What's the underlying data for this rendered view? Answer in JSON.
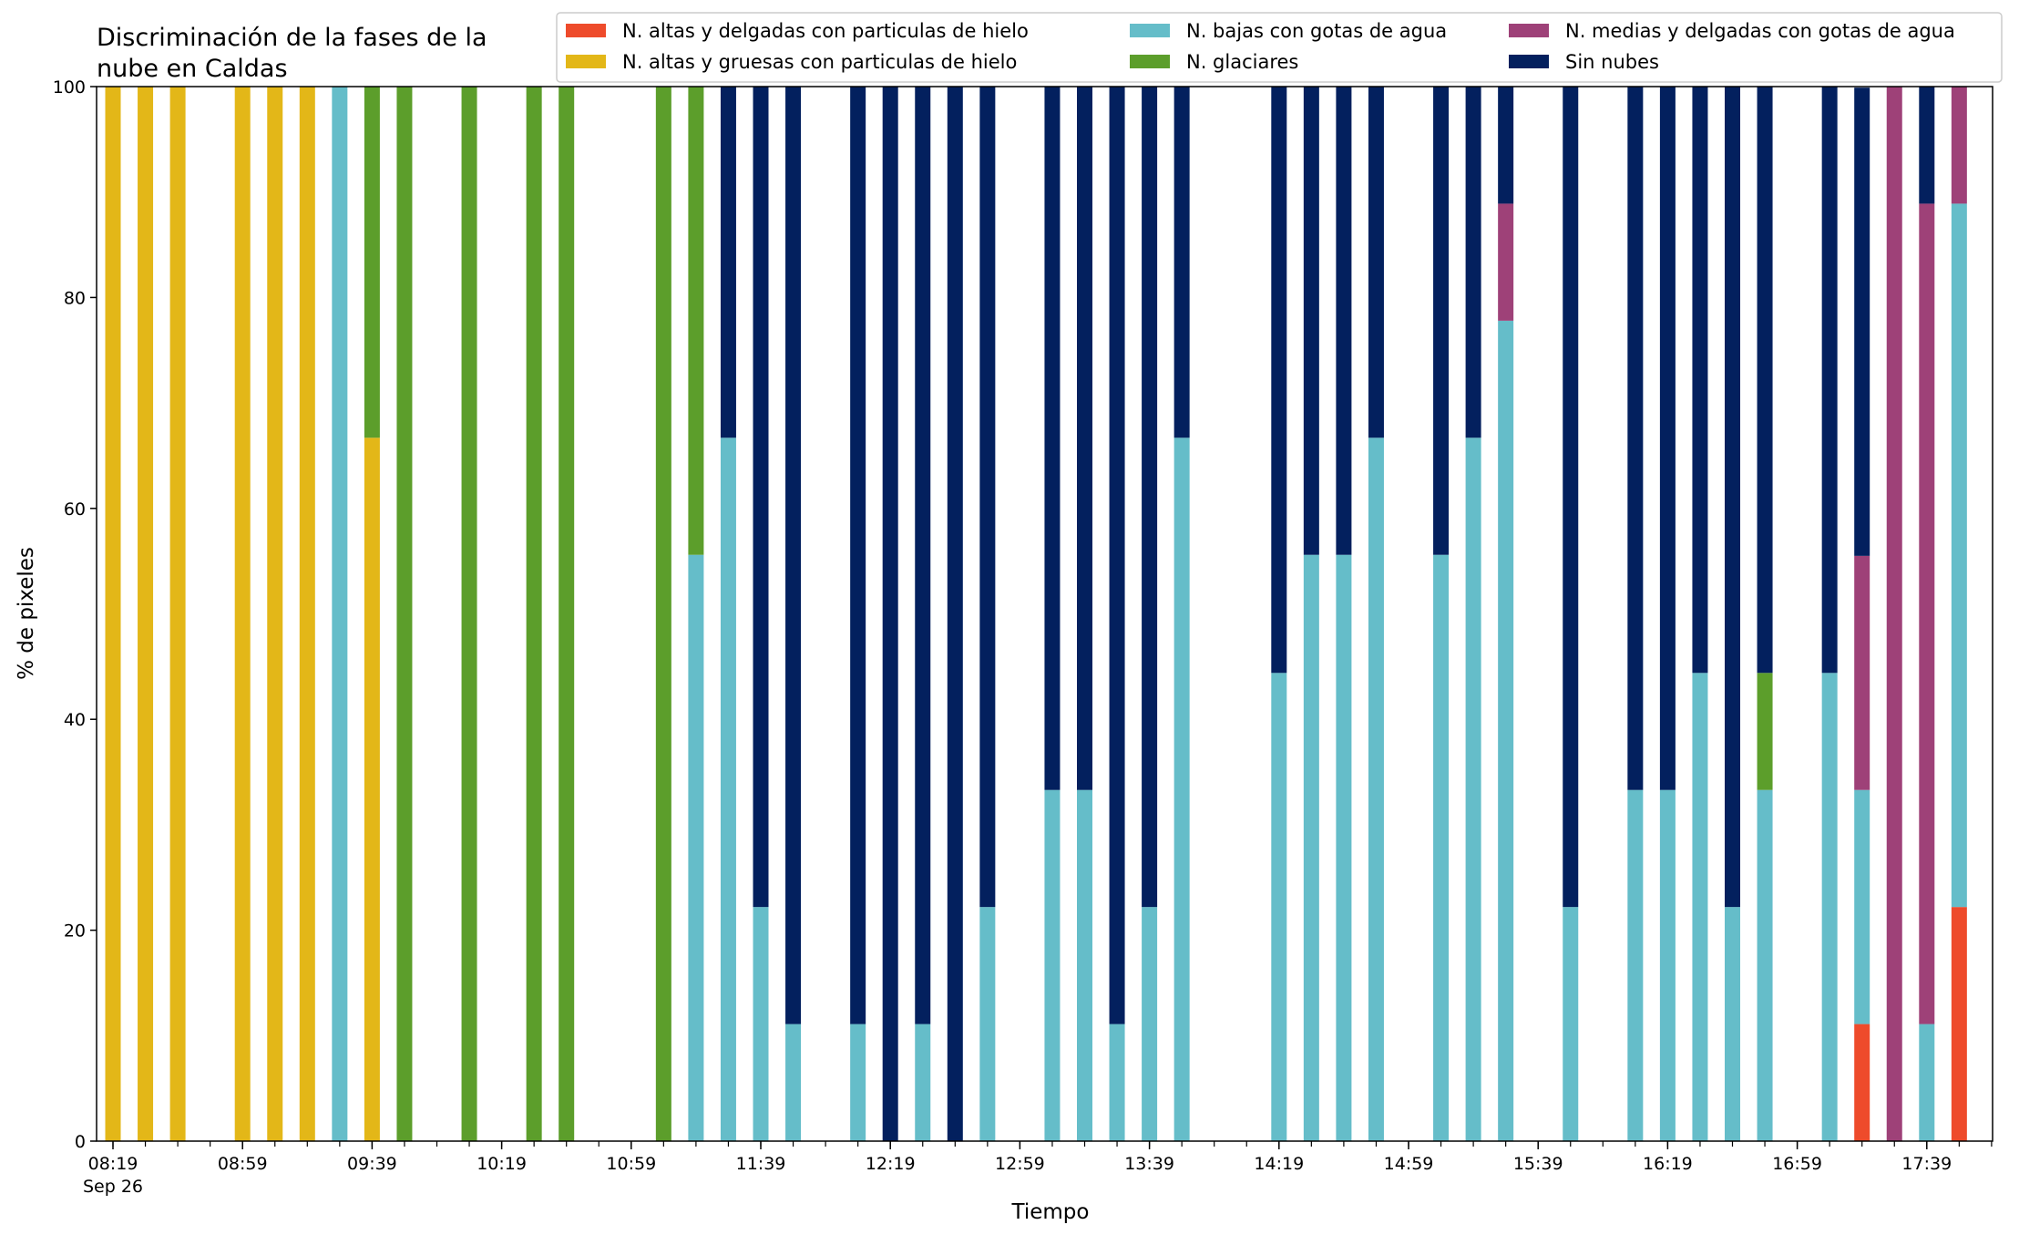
{
  "chart_data": {
    "type": "bar",
    "stacked": true,
    "title_lines": [
      "Discriminación de la fases de la",
      "nube en Caldas"
    ],
    "xlabel": "Tiempo",
    "ylabel": "% de pixeles",
    "ylim": [
      0,
      100
    ],
    "yticks": [
      0,
      20,
      40,
      60,
      80,
      100
    ],
    "x_start": "08:19",
    "slot_minutes": 10,
    "slot_count": 59,
    "xticks": [
      {
        "slot": 0,
        "label": "08:19",
        "sublabel": "Sep 26"
      },
      {
        "slot": 4,
        "label": "08:59"
      },
      {
        "slot": 8,
        "label": "09:39"
      },
      {
        "slot": 12,
        "label": "10:19"
      },
      {
        "slot": 16,
        "label": "10:59"
      },
      {
        "slot": 20,
        "label": "11:39"
      },
      {
        "slot": 24,
        "label": "12:19"
      },
      {
        "slot": 28,
        "label": "12:59"
      },
      {
        "slot": 32,
        "label": "13:39"
      },
      {
        "slot": 36,
        "label": "14:19"
      },
      {
        "slot": 40,
        "label": "14:59"
      },
      {
        "slot": 44,
        "label": "15:39"
      },
      {
        "slot": 48,
        "label": "16:19"
      },
      {
        "slot": 52,
        "label": "16:59"
      },
      {
        "slot": 56,
        "label": "17:39"
      }
    ],
    "legend_placement": "top-right",
    "series": [
      {
        "name": "N. altas y delgadas con particulas de hielo",
        "color": "#ee4b2b"
      },
      {
        "name": "N. altas y gruesas con particulas de hielo",
        "color": "#e3b718"
      },
      {
        "name": "N. bajas con gotas de agua",
        "color": "#65bdc9"
      },
      {
        "name": "N. glaciares",
        "color": "#5c9e2b"
      },
      {
        "name": "N. medias y delgadas con gotas de agua",
        "color": "#9e4178"
      },
      {
        "name": "Sin nubes",
        "color": "#03205e"
      }
    ],
    "bars": [
      {
        "time": "08:19",
        "values": [
          0,
          100,
          0,
          0,
          0,
          0
        ]
      },
      {
        "time": "08:29",
        "values": [
          0,
          100,
          0,
          0,
          0,
          0
        ]
      },
      {
        "time": "08:39",
        "values": [
          0,
          100,
          0,
          0,
          0,
          0
        ]
      },
      {
        "time": "08:59",
        "values": [
          0,
          100,
          0,
          0,
          0,
          0
        ]
      },
      {
        "time": "09:09",
        "values": [
          0,
          100,
          0,
          0,
          0,
          0
        ]
      },
      {
        "time": "09:19",
        "values": [
          0,
          100,
          0,
          0,
          0,
          0
        ]
      },
      {
        "time": "09:29",
        "values": [
          0,
          0,
          100,
          0,
          0,
          0
        ]
      },
      {
        "time": "09:39",
        "values": [
          0,
          66.7,
          0,
          33.3,
          0,
          0
        ]
      },
      {
        "time": "09:49",
        "values": [
          0,
          0,
          0,
          100,
          0,
          0
        ]
      },
      {
        "time": "10:09",
        "values": [
          0,
          0,
          0,
          100,
          0,
          0
        ]
      },
      {
        "time": "10:29",
        "values": [
          0,
          0,
          0,
          100,
          0,
          0
        ]
      },
      {
        "time": "10:39",
        "values": [
          0,
          0,
          0,
          100,
          0,
          0
        ]
      },
      {
        "time": "11:09",
        "values": [
          0,
          0,
          0,
          100,
          0,
          0
        ]
      },
      {
        "time": "11:19",
        "values": [
          0,
          0,
          55.6,
          44.4,
          0,
          0
        ]
      },
      {
        "time": "11:29",
        "values": [
          0,
          0,
          66.7,
          0,
          0,
          33.3
        ]
      },
      {
        "time": "11:39",
        "values": [
          0,
          0,
          22.2,
          0,
          0,
          77.8
        ]
      },
      {
        "time": "11:49",
        "values": [
          0,
          0,
          11.1,
          0,
          0,
          88.9
        ]
      },
      {
        "time": "12:09",
        "values": [
          0,
          0,
          11.1,
          0,
          0,
          88.9
        ]
      },
      {
        "time": "12:19",
        "values": [
          0,
          0,
          0,
          0,
          0,
          100
        ]
      },
      {
        "time": "12:29",
        "values": [
          0,
          0,
          11.1,
          0,
          0,
          88.9
        ]
      },
      {
        "time": "12:39",
        "values": [
          0,
          0,
          0,
          0,
          0,
          100
        ]
      },
      {
        "time": "12:49",
        "values": [
          0,
          0,
          22.2,
          0,
          0,
          77.8
        ]
      },
      {
        "time": "13:09",
        "values": [
          0,
          0,
          33.3,
          0,
          0,
          66.7
        ]
      },
      {
        "time": "13:19",
        "values": [
          0,
          0,
          33.3,
          0,
          0,
          66.7
        ]
      },
      {
        "time": "13:29",
        "values": [
          0,
          0,
          11.1,
          0,
          0,
          88.9
        ]
      },
      {
        "time": "13:39",
        "values": [
          0,
          0,
          22.2,
          0,
          0,
          77.8
        ]
      },
      {
        "time": "13:49",
        "values": [
          0,
          0,
          66.7,
          0,
          0,
          33.3
        ]
      },
      {
        "time": "14:19",
        "values": [
          0,
          0,
          44.4,
          0,
          0,
          55.6
        ]
      },
      {
        "time": "14:29",
        "values": [
          0,
          0,
          55.6,
          0,
          0,
          44.4
        ]
      },
      {
        "time": "14:39",
        "values": [
          0,
          0,
          55.6,
          0,
          0,
          44.4
        ]
      },
      {
        "time": "14:49",
        "values": [
          0,
          0,
          66.7,
          0,
          0,
          33.3
        ]
      },
      {
        "time": "15:09",
        "values": [
          0,
          0,
          55.6,
          0,
          0,
          44.4
        ]
      },
      {
        "time": "15:19",
        "values": [
          0,
          0,
          66.7,
          0,
          0,
          33.3
        ]
      },
      {
        "time": "15:29",
        "values": [
          0,
          0,
          77.8,
          0,
          11.1,
          11.1
        ]
      },
      {
        "time": "15:49",
        "values": [
          0,
          0,
          22.2,
          0,
          0,
          77.8
        ]
      },
      {
        "time": "16:09",
        "values": [
          0,
          0,
          33.3,
          0,
          0,
          66.7
        ]
      },
      {
        "time": "16:19",
        "values": [
          0,
          0,
          33.3,
          0,
          0,
          66.7
        ]
      },
      {
        "time": "16:29",
        "values": [
          0,
          0,
          44.4,
          0,
          0,
          55.6
        ]
      },
      {
        "time": "16:39",
        "values": [
          0,
          0,
          22.2,
          0,
          0,
          77.8
        ]
      },
      {
        "time": "16:49",
        "values": [
          0,
          0,
          33.3,
          11.1,
          0,
          55.6
        ]
      },
      {
        "time": "17:09",
        "values": [
          0,
          0,
          44.4,
          0,
          0,
          55.6
        ]
      },
      {
        "time": "17:19",
        "values": [
          11.1,
          0,
          22.2,
          0,
          22.2,
          44.4
        ]
      },
      {
        "time": "17:29",
        "values": [
          0,
          0,
          0,
          0,
          100,
          0
        ]
      },
      {
        "time": "17:39",
        "values": [
          0,
          0,
          11.1,
          0,
          77.8,
          11.1
        ]
      },
      {
        "time": "17:49",
        "values": [
          22.2,
          0,
          66.7,
          0,
          11.1,
          0
        ]
      }
    ]
  }
}
